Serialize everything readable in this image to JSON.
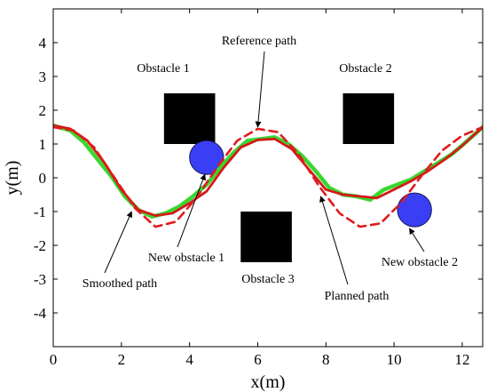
{
  "chart_data": {
    "type": "line",
    "xlabel": "x(m)",
    "ylabel": "y(m)",
    "xlim": [
      0,
      12.6
    ],
    "ylim": [
      -5,
      5
    ],
    "xticks": [
      0,
      2,
      4,
      6,
      8,
      10,
      12
    ],
    "yticks": [
      -4,
      -3,
      -2,
      -1,
      0,
      1,
      2,
      3,
      4
    ],
    "grid": false,
    "series": [
      {
        "name": "Reference path",
        "style": "dashed",
        "color": "#e01b1b",
        "points": [
          [
            0,
            1.5
          ],
          [
            0.6,
            1.4
          ],
          [
            1.2,
            0.9
          ],
          [
            1.8,
            0.0
          ],
          [
            2.4,
            -0.9
          ],
          [
            3.0,
            -1.45
          ],
          [
            3.6,
            -1.3
          ],
          [
            4.2,
            -0.6
          ],
          [
            4.8,
            0.3
          ],
          [
            5.4,
            1.1
          ],
          [
            6.0,
            1.45
          ],
          [
            6.6,
            1.35
          ],
          [
            7.2,
            0.7
          ],
          [
            7.8,
            -0.25
          ],
          [
            8.4,
            -1.05
          ],
          [
            9.0,
            -1.45
          ],
          [
            9.6,
            -1.35
          ],
          [
            10.2,
            -0.75
          ],
          [
            10.8,
            0.05
          ],
          [
            11.4,
            0.8
          ],
          [
            12.0,
            1.25
          ],
          [
            12.6,
            1.5
          ]
        ]
      },
      {
        "name": "Smoothed path",
        "style": "solid",
        "color": "#37d72e",
        "points": [
          [
            0,
            1.55
          ],
          [
            0.5,
            1.4
          ],
          [
            0.9,
            1.05
          ],
          [
            1.3,
            0.55
          ],
          [
            1.7,
            0.05
          ],
          [
            2.1,
            -0.55
          ],
          [
            2.5,
            -0.95
          ],
          [
            2.9,
            -1.15
          ],
          [
            3.3,
            -1.05
          ],
          [
            3.7,
            -0.85
          ],
          [
            4.1,
            -0.55
          ],
          [
            4.5,
            -0.2
          ],
          [
            4.9,
            0.3
          ],
          [
            5.3,
            0.75
          ],
          [
            5.7,
            1.1
          ],
          [
            6.1,
            1.15
          ],
          [
            6.5,
            1.2
          ],
          [
            6.9,
            1.0
          ],
          [
            7.3,
            0.65
          ],
          [
            7.7,
            0.2
          ],
          [
            8.1,
            -0.3
          ],
          [
            8.5,
            -0.5
          ],
          [
            8.9,
            -0.55
          ],
          [
            9.3,
            -0.65
          ],
          [
            9.7,
            -0.35
          ],
          [
            10.1,
            -0.2
          ],
          [
            10.5,
            -0.05
          ],
          [
            10.9,
            0.2
          ],
          [
            11.3,
            0.45
          ],
          [
            11.7,
            0.7
          ],
          [
            12.1,
            1.05
          ],
          [
            12.6,
            1.5
          ]
        ]
      },
      {
        "name": "Planned path",
        "style": "solid",
        "color": "#d41a1a",
        "points": [
          [
            0,
            1.55
          ],
          [
            0.5,
            1.45
          ],
          [
            1.0,
            1.1
          ],
          [
            1.5,
            0.45
          ],
          [
            2.0,
            -0.35
          ],
          [
            2.5,
            -0.95
          ],
          [
            3.0,
            -1.12
          ],
          [
            3.5,
            -1.05
          ],
          [
            4.0,
            -0.75
          ],
          [
            4.5,
            -0.4
          ],
          [
            5.0,
            0.3
          ],
          [
            5.5,
            0.9
          ],
          [
            6.0,
            1.12
          ],
          [
            6.5,
            1.15
          ],
          [
            7.0,
            0.85
          ],
          [
            7.5,
            0.25
          ],
          [
            8.0,
            -0.35
          ],
          [
            8.5,
            -0.5
          ],
          [
            9.0,
            -0.55
          ],
          [
            9.5,
            -0.6
          ],
          [
            10.0,
            -0.35
          ],
          [
            10.5,
            -0.1
          ],
          [
            11.0,
            0.2
          ],
          [
            11.5,
            0.55
          ],
          [
            12.0,
            0.95
          ],
          [
            12.6,
            1.5
          ]
        ]
      }
    ],
    "obstacles": [
      {
        "label": "Obstacle 1",
        "shape": "square",
        "center": [
          4.0,
          1.75
        ],
        "size": 1.5,
        "color": "#000000"
      },
      {
        "label": "Obstacle 2",
        "shape": "square",
        "center": [
          9.25,
          1.75
        ],
        "size": 1.5,
        "color": "#000000"
      },
      {
        "label": "Obstacle 3",
        "shape": "square",
        "center": [
          6.25,
          -1.75
        ],
        "size": 1.5,
        "color": "#000000"
      },
      {
        "label": "New obstacle 1",
        "shape": "circle",
        "center": [
          4.5,
          0.6
        ],
        "radius": 0.5,
        "color": "#3a3ff5"
      },
      {
        "label": "New obstacle 2",
        "shape": "circle",
        "center": [
          10.6,
          -0.95
        ],
        "radius": 0.5,
        "color": "#3a3ff5"
      }
    ],
    "annotations": [
      {
        "text": "Reference path",
        "point": [
          6.0,
          1.5
        ]
      },
      {
        "text": "Smoothed path",
        "point": [
          2.3,
          -1.0
        ]
      },
      {
        "text": "New obstacle 1",
        "point": [
          4.45,
          0.1
        ]
      },
      {
        "text": "Planned path",
        "point": [
          7.85,
          -0.55
        ]
      },
      {
        "text": "New obstacle 2",
        "point": [
          10.45,
          -1.5
        ]
      },
      {
        "text": "Obstacle 1",
        "point": [
          4.0,
          3.0
        ]
      },
      {
        "text": "Obstacle 2",
        "point": [
          9.25,
          3.0
        ]
      },
      {
        "text": "Obstacle 3",
        "point": [
          6.85,
          -3.0
        ]
      }
    ]
  }
}
